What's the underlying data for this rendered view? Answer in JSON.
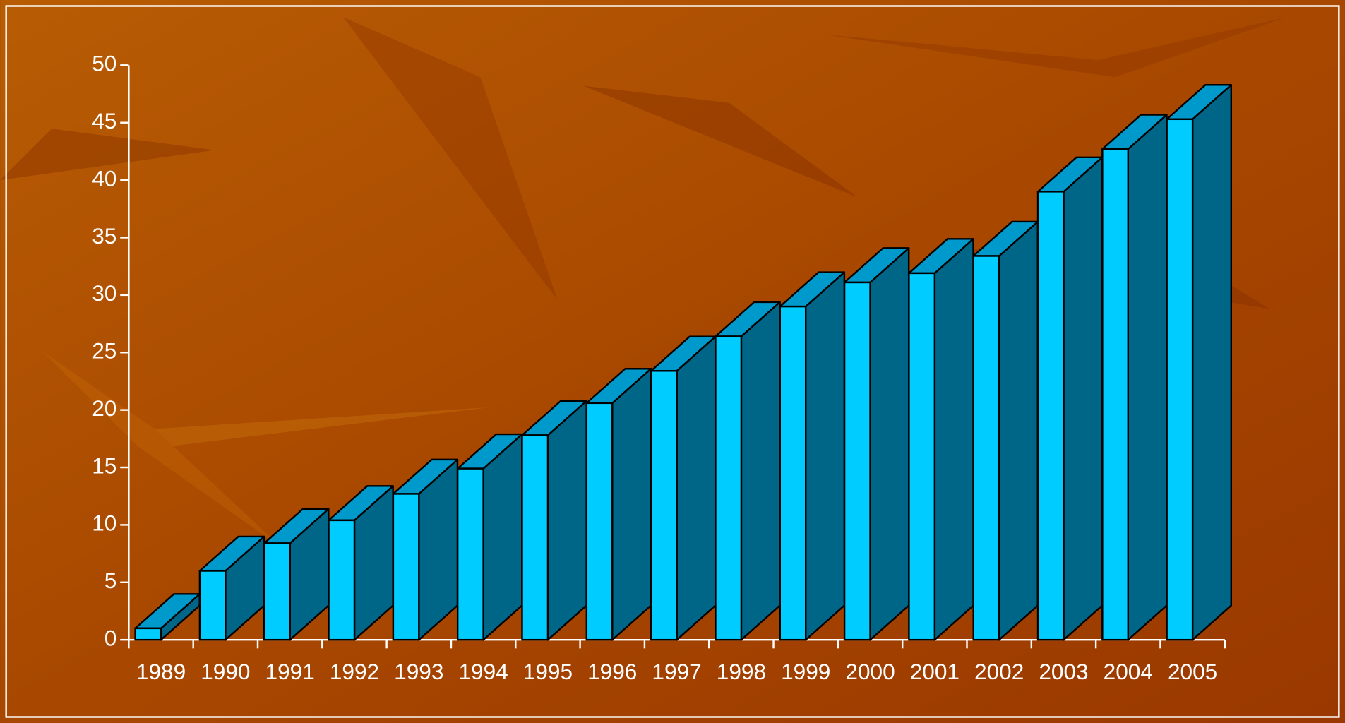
{
  "chart_data": {
    "type": "bar3d",
    "categories": [
      "1989",
      "1990",
      "1991",
      "1992",
      "1993",
      "1994",
      "1995",
      "1996",
      "1997",
      "1998",
      "1999",
      "2000",
      "2001",
      "2002",
      "2003",
      "2004",
      "2005"
    ],
    "values": [
      1.0,
      6.0,
      8.4,
      10.4,
      12.7,
      14.9,
      17.8,
      20.6,
      23.4,
      26.4,
      29.0,
      31.1,
      31.9,
      33.4,
      39.0,
      42.7,
      45.3
    ],
    "color": "#00ccff",
    "ylim": [
      0,
      50
    ],
    "yticks": [
      0,
      5,
      10,
      15,
      20,
      25,
      30,
      35,
      40,
      45,
      50
    ],
    "grid": false
  }
}
